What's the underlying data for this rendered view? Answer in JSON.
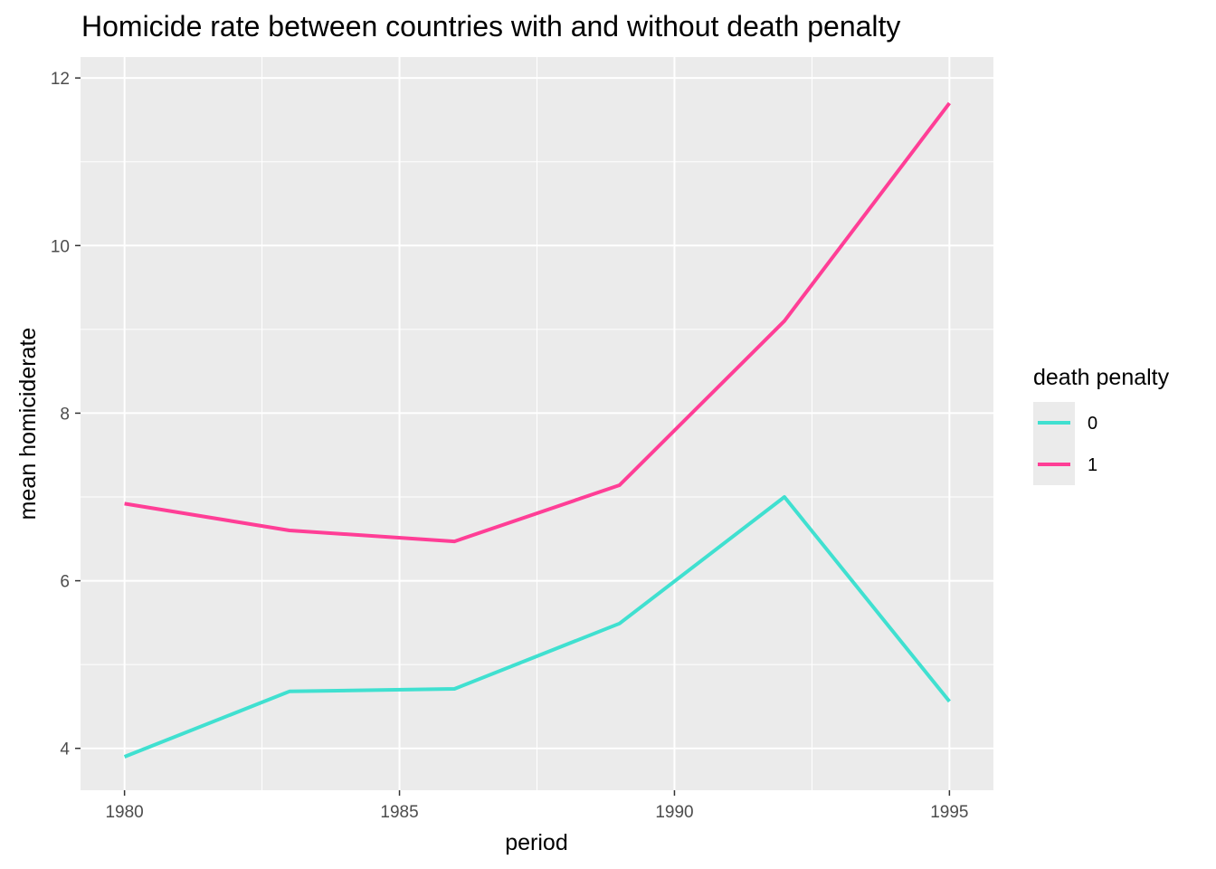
{
  "chart_data": {
    "type": "line",
    "title": "Homicide rate between countries with and without death penalty",
    "xlabel": "period",
    "ylabel": "mean homiciderate",
    "x": [
      1980,
      1983,
      1986,
      1989,
      1992,
      1995
    ],
    "xlim": [
      1979.2,
      1995.8
    ],
    "ylim": [
      3.5,
      12.25
    ],
    "xticks": [
      1980,
      1985,
      1990,
      1995
    ],
    "yticks": [
      4,
      6,
      8,
      10,
      12
    ],
    "grid": true,
    "legend": {
      "title": "death penalty",
      "position": "right"
    },
    "series": [
      {
        "name": "0",
        "color": "#40E0D0",
        "values": [
          3.9,
          4.68,
          4.71,
          5.49,
          7.0,
          4.56
        ]
      },
      {
        "name": "1",
        "color": "#FF3E96",
        "values": [
          6.92,
          6.6,
          6.47,
          7.14,
          9.1,
          11.7
        ]
      }
    ]
  },
  "colors": {
    "panel_background": "#EBEBEB",
    "grid_major": "#FFFFFF",
    "tick_mark": "#333333"
  }
}
